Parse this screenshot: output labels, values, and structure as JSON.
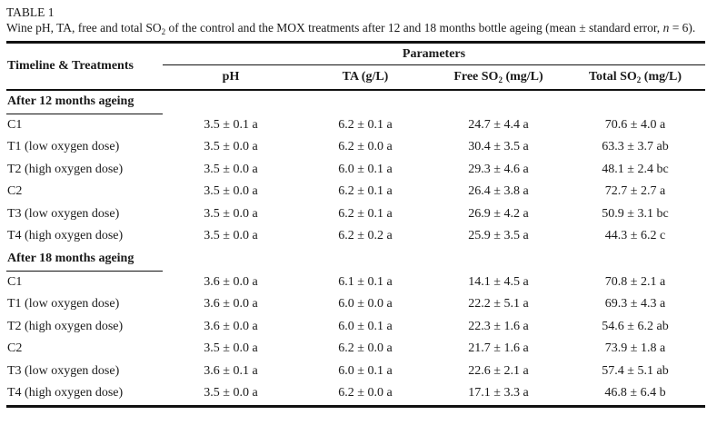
{
  "table": {
    "label": "TABLE 1",
    "caption": {
      "part1": "Wine pH, TA, free and total SO",
      "sub": "2",
      "part2": " of the control and the MOX treatments after 12 and 18 months bottle ageing (mean ± standard error, ",
      "n_italic": "n",
      "part3": " = 6)."
    },
    "header": {
      "row_group_label": "Timeline & Treatments",
      "group_label": "Parameters",
      "columns": [
        {
          "pre": "pH",
          "sub": "",
          "post": ""
        },
        {
          "pre": "TA (g/L)",
          "sub": "",
          "post": ""
        },
        {
          "pre": "Free SO",
          "sub": "2",
          "post": " (mg/L)"
        },
        {
          "pre": "Total SO",
          "sub": "2",
          "post": " (mg/L)"
        }
      ]
    },
    "sections": [
      {
        "title": "After 12 months ageing",
        "rows": [
          {
            "label": "C1",
            "values": [
              "3.5 ± 0.1 a",
              "6.2 ± 0.1 a",
              "24.7 ± 4.4 a",
              "70.6 ± 4.0 a"
            ]
          },
          {
            "label": "T1 (low oxygen dose)",
            "values": [
              "3.5 ± 0.0 a",
              "6.2 ± 0.0 a",
              "30.4 ± 3.5 a",
              "63.3 ± 3.7 ab"
            ]
          },
          {
            "label": "T2 (high oxygen dose)",
            "values": [
              "3.5 ± 0.0 a",
              "6.0 ± 0.1 a",
              "29.3 ± 4.6 a",
              "48.1 ± 2.4 bc"
            ]
          },
          {
            "label": "C2",
            "values": [
              "3.5 ± 0.0 a",
              "6.2 ± 0.1 a",
              "26.4 ± 3.8 a",
              "72.7 ± 2.7 a"
            ]
          },
          {
            "label": "T3 (low oxygen dose)",
            "values": [
              "3.5 ± 0.0 a",
              "6.2 ± 0.1 a",
              "26.9 ± 4.2 a",
              "50.9 ± 3.1 bc"
            ]
          },
          {
            "label": "T4 (high oxygen dose)",
            "values": [
              "3.5 ± 0.0 a",
              "6.2 ± 0.2 a",
              "25.9 ± 3.5 a",
              "44.3 ± 6.2 c"
            ]
          }
        ]
      },
      {
        "title": "After 18 months ageing",
        "rows": [
          {
            "label": "C1",
            "values": [
              "3.6 ± 0.0 a",
              "6.1 ± 0.1 a",
              "14.1 ± 4.5 a",
              "70.8 ± 2.1 a"
            ]
          },
          {
            "label": "T1 (low oxygen dose)",
            "values": [
              "3.6 ± 0.0 a",
              "6.0 ± 0.0 a",
              "22.2 ± 5.1 a",
              "69.3 ± 4.3 a"
            ]
          },
          {
            "label": "T2 (high oxygen dose)",
            "values": [
              "3.6 ± 0.0 a",
              "6.0 ± 0.1 a",
              "22.3 ± 1.6 a",
              "54.6 ± 6.2 ab"
            ]
          },
          {
            "label": "C2",
            "values": [
              "3.5 ± 0.0 a",
              "6.2 ± 0.0 a",
              "21.7 ± 1.6 a",
              "73.9 ± 1.8 a"
            ]
          },
          {
            "label": "T3 (low oxygen dose)",
            "values": [
              "3.6 ± 0.1 a",
              "6.0 ± 0.1 a",
              "22.6 ± 2.1 a",
              "57.4 ± 5.1 ab"
            ]
          },
          {
            "label": "T4 (high oxygen dose)",
            "values": [
              "3.5 ± 0.0 a",
              "6.2 ± 0.0 a",
              "17.1 ± 3.3 a",
              "46.8 ± 6.4 b"
            ]
          }
        ]
      }
    ]
  }
}
